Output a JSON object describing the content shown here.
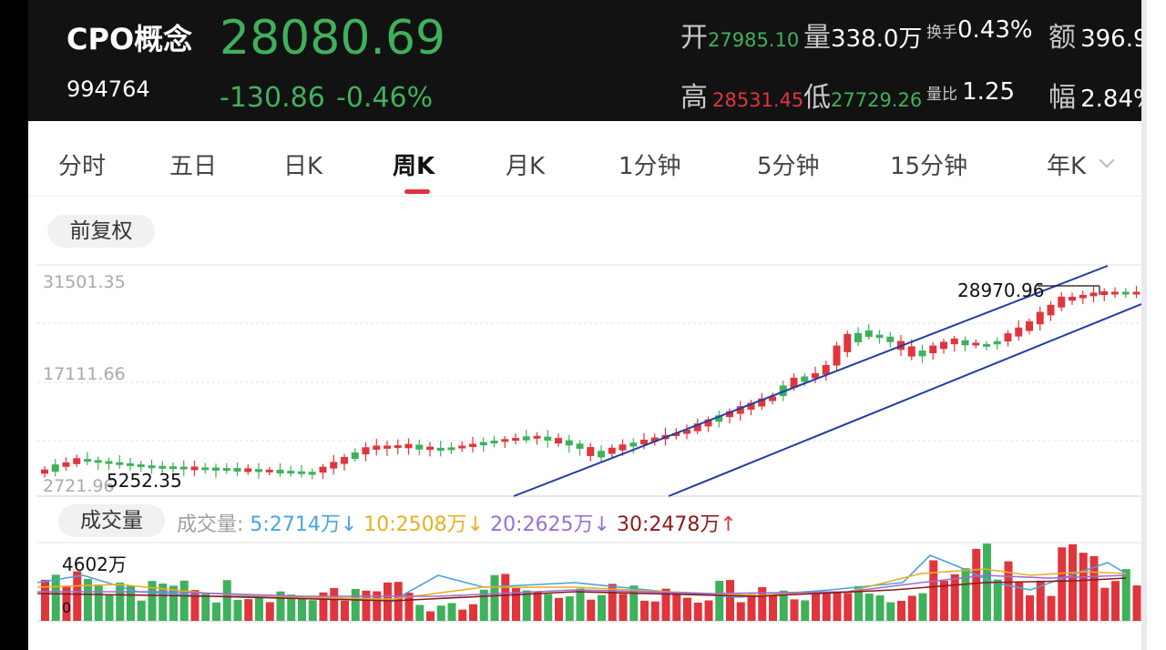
{
  "header": {
    "name": "CPO概念",
    "code": "994764",
    "price": "28080.69",
    "change": "-130.86",
    "change_pct": "-0.46%",
    "stats": {
      "open_label": "开",
      "open": "27985.10",
      "volume_label": "量",
      "volume": "338.0万",
      "turnover_label": "换手",
      "turnover": "0.43%",
      "amount_label": "额",
      "amount": "396.9",
      "high_label": "高",
      "high": "28531.45",
      "low_label": "低",
      "low": "27729.26",
      "vol_ratio_label": "量比",
      "vol_ratio": "1.25",
      "amplitude_label": "幅",
      "amplitude": "2.84%"
    }
  },
  "tabs": [
    "分时",
    "五日",
    "日K",
    "周K",
    "月K",
    "1分钟",
    "5分钟",
    "15分钟",
    "年K"
  ],
  "active_tab": "周K",
  "adjust_label": "前复权",
  "chart": {
    "y_top": "31501.35",
    "y_mid": "17111.66",
    "y_bottom": "2721.96",
    "annotation_high": "28970.96",
    "annotation_low": "5252.35"
  },
  "volume": {
    "label": "成交量",
    "title": "成交量:",
    "ma5": "5:2714万",
    "ma10": "10:2508万",
    "ma20": "20:2625万",
    "ma30": "30:2478万",
    "top": "4602万",
    "bottom": "0"
  },
  "colors": {
    "up": "#e0353d",
    "down": "#3fb15c",
    "channel": "#1f3fa0",
    "ma5": "#4aa3df",
    "ma10": "#e8b020",
    "ma20": "#9a6fd6",
    "ma30": "#8b1a1a"
  },
  "icons": [
    "chevron-down-icon",
    "arrow-down-icon",
    "arrow-up-icon"
  ]
}
